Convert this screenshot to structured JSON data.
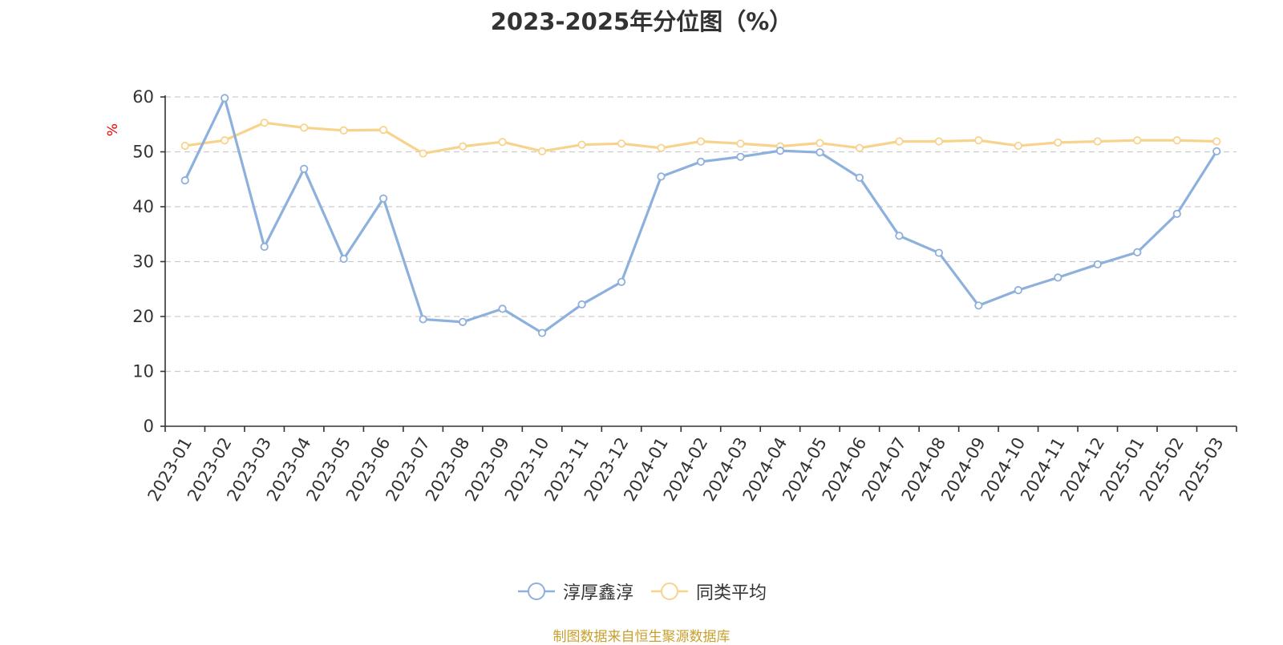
{
  "chart_data": {
    "type": "line",
    "title": "2023-2025年分位图（%）",
    "ylabel": "%",
    "ylim": [
      0,
      60
    ],
    "yticks": [
      0,
      10,
      20,
      30,
      40,
      50,
      60
    ],
    "grid": true,
    "legend_position": "bottom",
    "categories": [
      "2023-01",
      "2023-02",
      "2023-03",
      "2023-04",
      "2023-05",
      "2023-06",
      "2023-07",
      "2023-08",
      "2023-09",
      "2023-10",
      "2023-11",
      "2023-12",
      "2024-01",
      "2024-02",
      "2024-03",
      "2024-04",
      "2024-05",
      "2024-06",
      "2024-07",
      "2024-08",
      "2024-09",
      "2024-10",
      "2024-11",
      "2024-12",
      "2025-01",
      "2025-02",
      "2025-03"
    ],
    "series": [
      {
        "name": "淳厚鑫淳",
        "color": "#8eb0dc",
        "values": [
          44.8,
          59.8,
          32.7,
          46.9,
          30.5,
          41.5,
          19.5,
          19.0,
          21.4,
          17.0,
          22.2,
          26.3,
          45.5,
          48.2,
          49.1,
          50.2,
          49.9,
          45.3,
          34.7,
          31.6,
          22.0,
          24.8,
          27.1,
          29.5,
          31.7,
          38.7,
          50.1
        ]
      },
      {
        "name": "同类平均",
        "color": "#f8d38e",
        "values": [
          51.1,
          52.1,
          55.3,
          54.4,
          53.9,
          54.0,
          49.7,
          51.0,
          51.8,
          50.1,
          51.3,
          51.5,
          50.7,
          51.9,
          51.5,
          51.0,
          51.6,
          50.7,
          51.9,
          51.9,
          52.1,
          51.1,
          51.7,
          51.9,
          52.1,
          52.1,
          51.9
        ]
      }
    ]
  },
  "footer": {
    "source": "制图数据来自恒生聚源数据库"
  }
}
